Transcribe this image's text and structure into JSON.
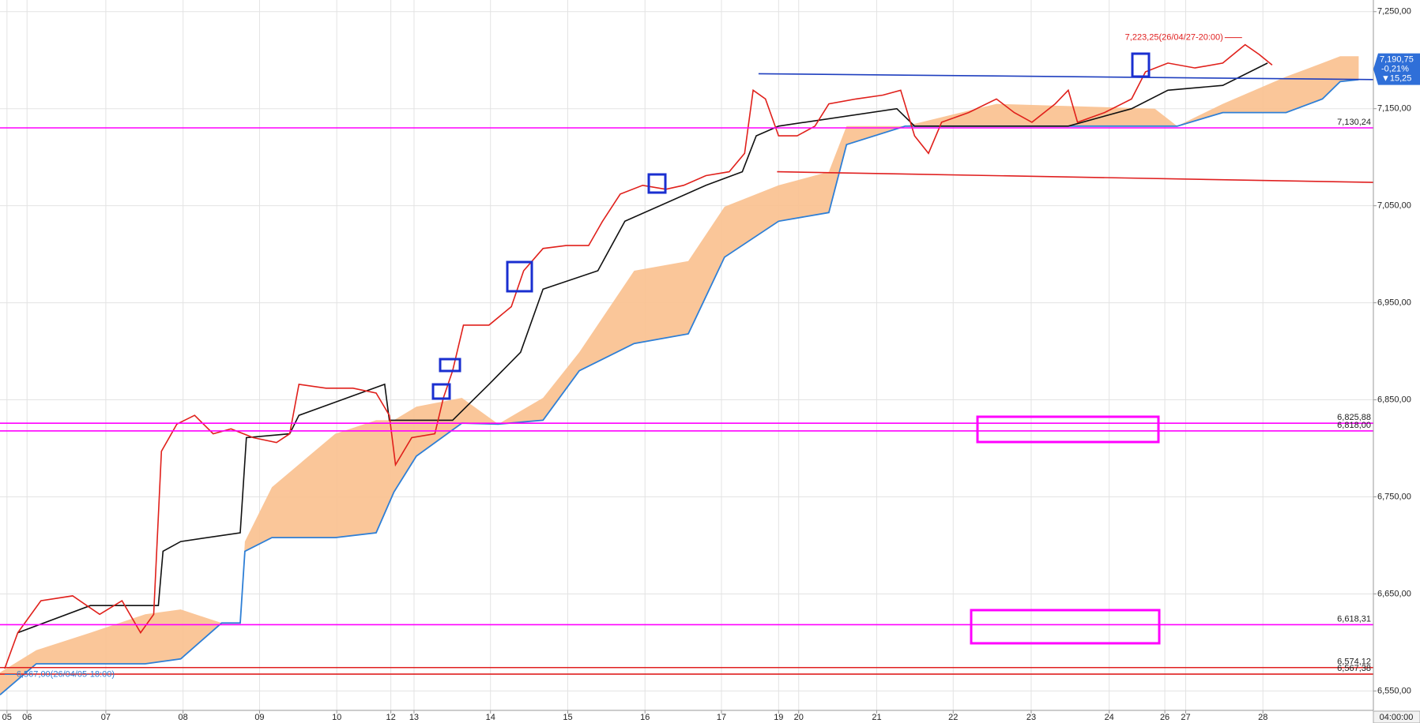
{
  "chart_data": {
    "type": "line",
    "xlim": [
      0,
      17.78
    ],
    "ylim": [
      6530,
      7262
    ],
    "grid": true,
    "xticks": [
      {
        "value": 0.09,
        "label": "05"
      },
      {
        "value": 0.35,
        "label": "06"
      },
      {
        "value": 1.37,
        "label": "07"
      },
      {
        "value": 2.37,
        "label": "08"
      },
      {
        "value": 3.36,
        "label": "09"
      },
      {
        "value": 4.36,
        "label": "10"
      },
      {
        "value": 5.06,
        "label": "12"
      },
      {
        "value": 5.36,
        "label": "13"
      },
      {
        "value": 6.35,
        "label": "14"
      },
      {
        "value": 7.35,
        "label": "15"
      },
      {
        "value": 8.35,
        "label": "16"
      },
      {
        "value": 9.34,
        "label": "17"
      },
      {
        "value": 10.08,
        "label": "19"
      },
      {
        "value": 10.34,
        "label": "20"
      },
      {
        "value": 11.35,
        "label": "21"
      },
      {
        "value": 12.34,
        "label": "22"
      },
      {
        "value": 13.35,
        "label": "23"
      },
      {
        "value": 14.36,
        "label": "24"
      },
      {
        "value": 15.08,
        "label": "26"
      },
      {
        "value": 15.35,
        "label": "27"
      },
      {
        "value": 16.35,
        "label": "28"
      }
    ],
    "yticks": [
      {
        "value": 6550,
        "label": "6,550,00"
      },
      {
        "value": 6650,
        "label": "6,650,00"
      },
      {
        "value": 6750,
        "label": "6,750,00"
      },
      {
        "value": 6850,
        "label": "6,850,00"
      },
      {
        "value": 6950,
        "label": "6,950,00"
      },
      {
        "value": 7050,
        "label": "7,050,00"
      },
      {
        "value": 7150,
        "label": "7,150,00"
      },
      {
        "value": 7250,
        "label": "7,250,00"
      }
    ],
    "series": [
      {
        "color": "#e0201b",
        "x": [
          0.06,
          0.23,
          0.53,
          0.94,
          1.29,
          1.58,
          1.82,
          1.99,
          2.09,
          2.29,
          2.52,
          2.76,
          2.99,
          3.28,
          3.58,
          3.75,
          3.87,
          4.22,
          4.57,
          4.87,
          5.04,
          5.12,
          5.33,
          5.63,
          5.74,
          5.86,
          6.0,
          6.33,
          6.62,
          6.78,
          7.03,
          7.33,
          7.62,
          7.8,
          8.03,
          8.32,
          8.62,
          8.85,
          9.14,
          9.44,
          9.64,
          9.75,
          9.91,
          10.08,
          10.32,
          10.55,
          10.73,
          11.08,
          11.43,
          11.66,
          11.84,
          12.02,
          12.19,
          12.54,
          12.9,
          13.13,
          13.36,
          13.66,
          13.83,
          13.95,
          14.3,
          14.65,
          14.83,
          15.12,
          15.47,
          15.83,
          16.12,
          16.3,
          16.47
        ],
        "values": [
          6573,
          6610,
          6643,
          6648,
          6629,
          6643,
          6610,
          6629,
          6797,
          6825,
          6834,
          6815,
          6820,
          6811,
          6806,
          6815,
          6866,
          6862,
          6862,
          6857,
          6834,
          6783,
          6811,
          6815,
          6852,
          6880,
          6927,
          6927,
          6946,
          6983,
          7006,
          7009,
          7009,
          7034,
          7062,
          7071,
          7067,
          7071,
          7081,
          7085,
          7104,
          7169,
          7160,
          7122,
          7122,
          7132,
          7155,
          7160,
          7164,
          7169,
          7122,
          7104,
          7136,
          7146,
          7160,
          7146,
          7136,
          7155,
          7169,
          7136,
          7146,
          7160,
          7188,
          7197,
          7192,
          7197,
          7216,
          7206,
          7195
        ]
      },
      {
        "color": "#111111",
        "x": [
          0.23,
          1.17,
          2.05,
          2.11,
          2.34,
          3.11,
          3.19,
          3.75,
          3.87,
          4.98,
          5.04,
          5.86,
          6.33,
          6.74,
          7.03,
          7.74,
          8.09,
          9.14,
          9.61,
          9.79,
          10.08,
          11.61,
          11.84,
          13.83,
          14.65,
          15.12,
          15.83,
          16.41
        ],
        "values": [
          6610,
          6638,
          6638,
          6694,
          6704,
          6713,
          6811,
          6815,
          6834,
          6866,
          6829,
          6829,
          6866,
          6899,
          6964,
          6983,
          7034,
          7071,
          7085,
          7122,
          7132,
          7150,
          7132,
          7132,
          7150,
          7169,
          7174,
          7197
        ]
      },
      {
        "color": "#f9c08e",
        "x": [
          0,
          0.47,
          1.17,
          1.88,
          2.34,
          2.87,
          3.11,
          3.17,
          3.52,
          4.34,
          4.87,
          5.1,
          5.39,
          5.98,
          6.45,
          7.03,
          7.5,
          8.21,
          8.91,
          9.38,
          10.08,
          10.73,
          10.96,
          11.72,
          12.9,
          14.95,
          15.24,
          15.83,
          16.65,
          17.12,
          17.35,
          17.59
        ],
        "values": [
          6569,
          6592,
          6610,
          6629,
          6634,
          6620,
          6620,
          6704,
          6760,
          6815,
          6829,
          6829,
          6843,
          6852,
          6825,
          6852,
          6899,
          6983,
          6993,
          7049,
          7071,
          7085,
          7132,
          7132,
          7155,
          7150,
          7132,
          7155,
          7183,
          7197,
          7204,
          7204
        ]
      },
      {
        "color": "#2e7fd6",
        "x": [
          0,
          0.47,
          1.17,
          1.88,
          2.34,
          2.87,
          3.11,
          3.17,
          3.52,
          4.34,
          4.87,
          5.1,
          5.39,
          5.98,
          6.45,
          7.03,
          7.5,
          8.21,
          8.91,
          9.38,
          10.08,
          10.73,
          10.96,
          11.72,
          12.9,
          14.95,
          15.24,
          15.83,
          16.65,
          17.12,
          17.35,
          17.59
        ],
        "values": [
          6546,
          6578,
          6578,
          6578,
          6583,
          6620,
          6620,
          6694,
          6708,
          6708,
          6713,
          6755,
          6792,
          6826,
          6825,
          6829,
          6880,
          6908,
          6918,
          6997,
          7034,
          7043,
          7113,
          7132,
          7132,
          7132,
          7132,
          7146,
          7146,
          7160,
          7178,
          7180
        ]
      }
    ],
    "trendlines": [
      {
        "color": "#1f3fbf",
        "x": [
          9.82,
          17.78
        ],
        "values": [
          7186,
          7180
        ]
      },
      {
        "color": "#e02020",
        "x": [
          10.06,
          17.78
        ],
        "values": [
          7085,
          7074
        ]
      }
    ],
    "levels": [
      {
        "value": 7130.24,
        "label": "7,130,24",
        "color": "#ff00ff"
      },
      {
        "value": 6825.88,
        "label": "6,825,88",
        "color": "#ff00ff"
      },
      {
        "value": 6818.0,
        "label": "6,818,00",
        "color": "#ff00ff"
      },
      {
        "value": 6618.31,
        "label": "6,618,31",
        "color": "#ff00ff"
      },
      {
        "value": 6574.12,
        "label": "6,574,12",
        "color": "#e02020"
      },
      {
        "value": 6567.38,
        "label": "6,567,38",
        "color": "#e02020"
      }
    ],
    "high": {
      "value": 7223.25,
      "label": "7,223,25(26/04/27-20:00)",
      "x": 16.08
    },
    "low": {
      "value": 6567,
      "label": "6,567,00(26/04/05-18:00)",
      "x": 0.06
    },
    "current": {
      "value": 7190.75,
      "label": "7,190,75",
      "change": "-0,21%",
      "delta": "▼15,25"
    },
    "cursor_time": "04:00:00"
  }
}
